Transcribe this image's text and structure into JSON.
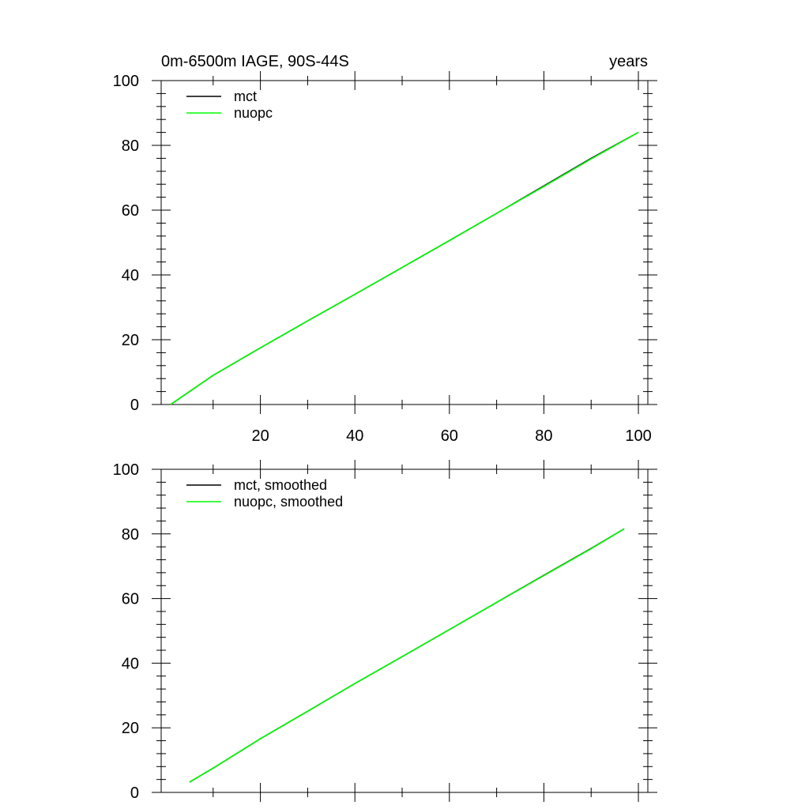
{
  "figure": {
    "title_left": "0m-6500m IAGE, 90S-44S",
    "title_right": "years"
  },
  "colors": {
    "mct": "#000000",
    "nuopc": "#00ff00",
    "axis": "#000000"
  },
  "chart_data": [
    {
      "type": "line",
      "title": "0m-6500m IAGE, 90S-44S",
      "title_right": "years",
      "xlim": [
        -1,
        102
      ],
      "ylim": [
        0,
        100
      ],
      "xticks": [
        20,
        40,
        60,
        80,
        100
      ],
      "xtick_labels": [
        "20",
        "40",
        "60",
        "80",
        "100"
      ],
      "yticks": [
        0,
        20,
        40,
        60,
        80,
        100
      ],
      "ytick_labels": [
        "0",
        "20",
        "40",
        "60",
        "80",
        "100"
      ],
      "legend_position": "top-left",
      "series": [
        {
          "name": "mct",
          "color": "#000000",
          "x": [
            1,
            10,
            20,
            30,
            40,
            50,
            60,
            70,
            80,
            90,
            100
          ],
          "y": [
            0,
            9,
            17.5,
            25.8,
            34,
            42.3,
            50.6,
            59,
            67.5,
            76,
            84
          ]
        },
        {
          "name": "nuopc",
          "color": "#00ff00",
          "x": [
            1,
            10,
            20,
            30,
            40,
            50,
            60,
            70,
            80,
            90,
            100
          ],
          "y": [
            0,
            9,
            17.5,
            25.8,
            34,
            42.3,
            50.6,
            59,
            67.3,
            75.8,
            84
          ]
        }
      ]
    },
    {
      "type": "line",
      "xlim": [
        -1,
        102
      ],
      "ylim": [
        0,
        100
      ],
      "xticks": [
        20,
        40,
        60,
        80,
        100
      ],
      "xtick_labels": [],
      "yticks": [
        0,
        20,
        40,
        60,
        80,
        100
      ],
      "ytick_labels": [
        "0",
        "20",
        "40",
        "60",
        "80",
        "100"
      ],
      "legend_position": "top-left",
      "series": [
        {
          "name": "mct, smoothed",
          "color": "#000000",
          "x": [
            5,
            10,
            20,
            30,
            40,
            50,
            60,
            70,
            80,
            90,
            97
          ],
          "y": [
            3.2,
            7.5,
            16.6,
            25.1,
            33.7,
            42,
            50.4,
            58.8,
            67.2,
            75.5,
            81.6
          ]
        },
        {
          "name": "nuopc, smoothed",
          "color": "#00ff00",
          "x": [
            5,
            10,
            20,
            30,
            40,
            50,
            60,
            70,
            80,
            90,
            97
          ],
          "y": [
            3.2,
            7.5,
            16.6,
            25.1,
            33.7,
            42,
            50.4,
            58.8,
            67.1,
            75.4,
            81.6
          ]
        }
      ]
    }
  ]
}
